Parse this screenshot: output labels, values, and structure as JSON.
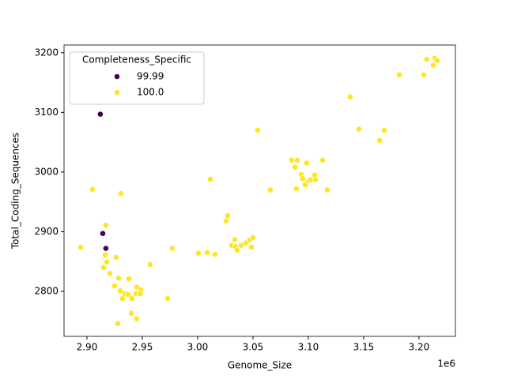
{
  "chart_data": {
    "type": "scatter",
    "x_label": "Genome_Size",
    "y_label": "Total_Coding_Sequences",
    "x_offset_label": "1e6",
    "legend_title": "Completeness_Specific",
    "legend": "upper left",
    "xlim": [
      2879300,
      3232900
    ],
    "ylim": [
      2724.5,
      3213
    ],
    "xticks": [
      {
        "value": 2900000,
        "label": "2.90"
      },
      {
        "value": 2950000,
        "label": "2.95"
      },
      {
        "value": 3000000,
        "label": "3.00"
      },
      {
        "value": 3050000,
        "label": "3.05"
      },
      {
        "value": 3100000,
        "label": "3.10"
      },
      {
        "value": 3150000,
        "label": "3.15"
      },
      {
        "value": 3200000,
        "label": "3.20"
      }
    ],
    "yticks": [
      2800,
      2900,
      3000,
      3100,
      3200
    ],
    "series": [
      {
        "name": "99.99",
        "color": "#440154",
        "x": [
          2912100,
          2914300,
          2917100
        ],
        "values": [
          3097,
          2897,
          2872
        ]
      },
      {
        "name": "100.0",
        "color": "#fde725",
        "x": [
          2894300,
          2905000,
          2930700,
          2917100,
          2916400,
          2915000,
          2917900,
          2920700,
          2926400,
          2925000,
          2928600,
          2937900,
          2927900,
          2940000,
          2945000,
          2930000,
          2932100,
          2934300,
          2937100,
          2940700,
          2944300,
          2945000,
          2948600,
          2947900,
          2957100,
          2972900,
          2977100,
          3000700,
          3008600,
          3015700,
          3011400,
          3027100,
          3025700,
          3030700,
          3033600,
          3034300,
          3035700,
          3039300,
          3043600,
          3047100,
          3050000,
          3048600,
          3054300,
          3065700,
          3085000,
          3087900,
          3090000,
          3089300,
          3093600,
          3095000,
          3097100,
          3098600,
          3100000,
          3102100,
          3105700,
          3106400,
          3112900,
          3117100,
          3137900,
          3145700,
          3164300,
          3168600,
          3182100,
          3204300,
          3207100,
          3212900,
          3214300,
          3216400
        ],
        "values": [
          2874,
          2971,
          2964,
          2911,
          2861,
          2840,
          2849,
          2830,
          2857,
          2809,
          2822,
          2821,
          2746,
          2763,
          2754,
          2801,
          2788,
          2796,
          2795,
          2788,
          2796,
          2807,
          2803,
          2796,
          2845,
          2788,
          2872,
          2864,
          2865,
          2862,
          2988,
          2927,
          2918,
          2877,
          2887,
          2875,
          2869,
          2877,
          2881,
          2886,
          2890,
          2874,
          3070,
          2970,
          3020,
          3008,
          3020,
          2972,
          2996,
          2989,
          2979,
          3015,
          2985,
          2987,
          2995,
          2987,
          3020,
          2970,
          3126,
          3072,
          3053,
          3070,
          3163,
          3163,
          3189,
          3179,
          3191,
          3187
        ]
      }
    ]
  }
}
